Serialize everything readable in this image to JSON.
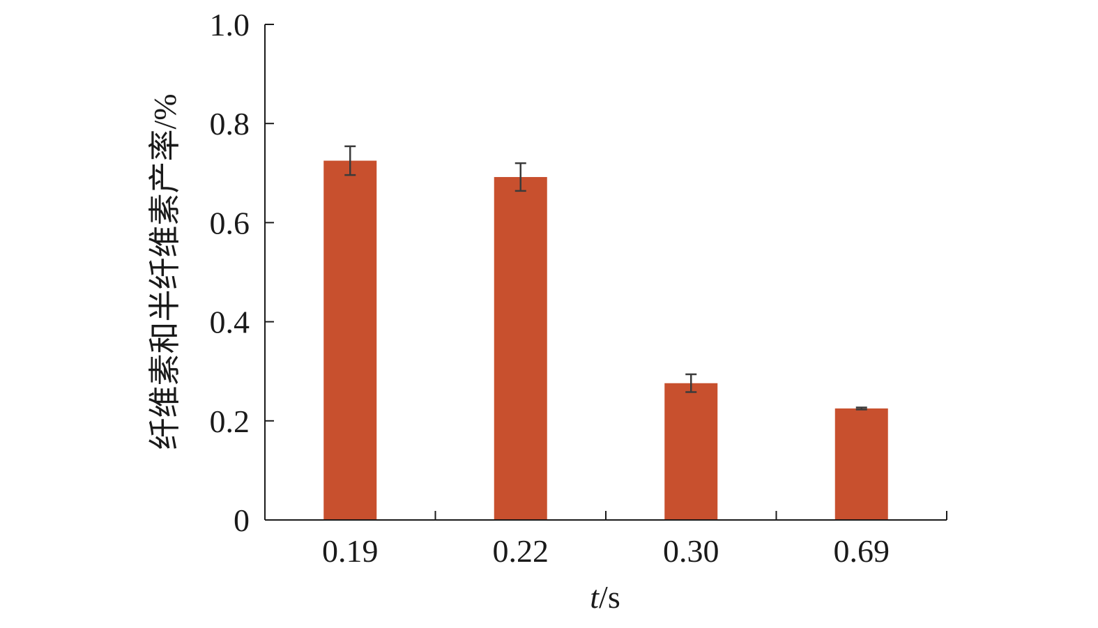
{
  "chart_data": {
    "type": "bar",
    "categories": [
      "0.19",
      "0.22",
      "0.30",
      "0.69"
    ],
    "values": [
      0.725,
      0.692,
      0.276,
      0.225
    ],
    "error": [
      0.029,
      0.028,
      0.018,
      0.002
    ],
    "xlabel_italic": "t",
    "xlabel_rest": "/s",
    "ylabel": "纤维素和半纤维素产率/%",
    "ylim": [
      0,
      1.0
    ],
    "yticks": [
      "0",
      "0.2",
      "0.4",
      "0.6",
      "0.8",
      "1.0"
    ],
    "ytick_values": [
      0,
      0.2,
      0.4,
      0.6,
      0.8,
      1.0
    ],
    "grid": false,
    "legend": "none",
    "colors": {
      "bar": "#c8502e",
      "axis": "#1a1a1a",
      "errorbar": "#3a3a3a"
    }
  }
}
